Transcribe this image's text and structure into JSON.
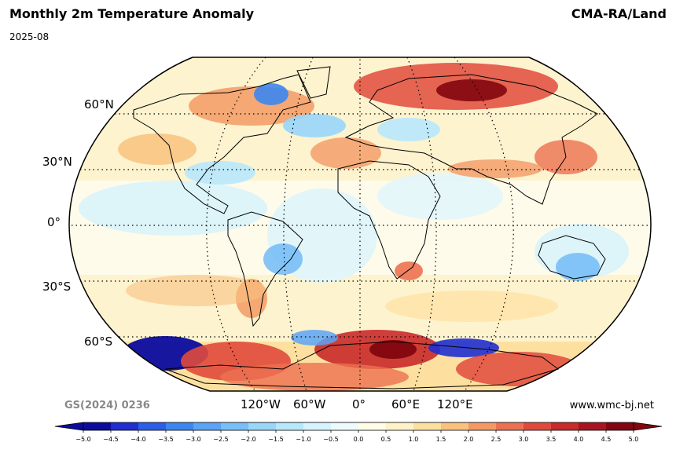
{
  "header": {
    "title": "Monthly 2m Temperature Anomaly",
    "date": "2025-08",
    "source": "CMA-RA/Land"
  },
  "map": {
    "projection": "robinson",
    "lat_labels": [
      "60°N",
      "30°N",
      "0°",
      "30°S",
      "60°S"
    ],
    "lon_labels": [
      "120°W",
      "60°W",
      "0°",
      "60°E",
      "120°E"
    ],
    "gridlines": "dotted",
    "ocean_color": "#fdf3cf",
    "coastline_color": "#000000"
  },
  "footer": {
    "copyright": "GS(2024) 0236",
    "website": "www.wmc-bj.net"
  },
  "colorbar": {
    "ticks": [
      "−5.0",
      "−4.5",
      "−4.0",
      "−3.5",
      "−3.0",
      "−2.5",
      "−2.0",
      "−1.5",
      "−1.0",
      "−0.5",
      "0.0",
      "0.5",
      "1.0",
      "1.5",
      "2.0",
      "2.5",
      "3.0",
      "3.5",
      "4.0",
      "4.5",
      "5.0"
    ],
    "colors": [
      "#0b0b9e",
      "#1f2fd1",
      "#2b5fe8",
      "#3c86f0",
      "#5aa3f5",
      "#79bff7",
      "#99d6fa",
      "#b8e8fc",
      "#d6f4fd",
      "#eefbfe",
      "#fffde8",
      "#fff2c8",
      "#fde0a0",
      "#f9c27e",
      "#f39a64",
      "#ec7150",
      "#e04a3c",
      "#c92a2a",
      "#a81520",
      "#82050f"
    ]
  }
}
